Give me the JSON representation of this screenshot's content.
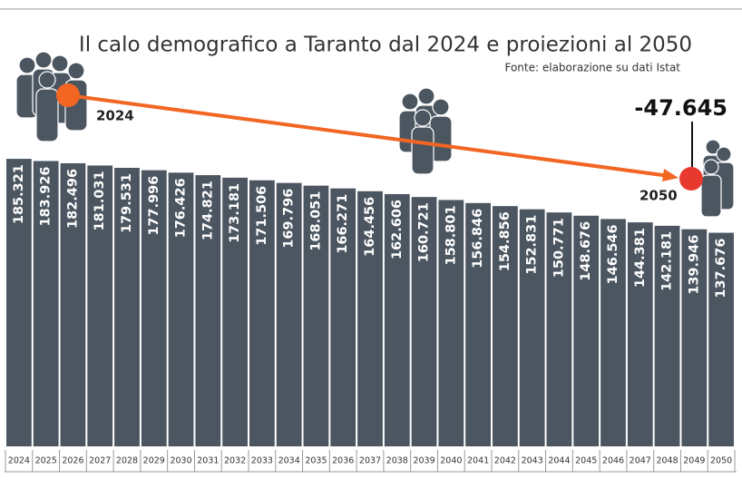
{
  "chart_data": {
    "type": "bar",
    "title": "Il calo demografico a Taranto dal 2024 e proiezioni al 2050",
    "subtitle": "Fonte: elaborazione su dati Istat",
    "categories": [
      "2024",
      "2025",
      "2026",
      "2027",
      "2028",
      "2029",
      "2030",
      "2031",
      "2032",
      "2033",
      "2034",
      "2035",
      "2036",
      "2037",
      "2038",
      "2039",
      "2040",
      "2041",
      "2042",
      "2043",
      "2044",
      "2045",
      "2046",
      "2047",
      "2048",
      "2049",
      "2050"
    ],
    "values": [
      185321,
      183926,
      182496,
      181031,
      179531,
      177996,
      176426,
      174821,
      173181,
      171506,
      169796,
      168051,
      166271,
      164456,
      162606,
      160721,
      158801,
      156846,
      154856,
      152831,
      150771,
      148676,
      146546,
      144381,
      142181,
      139946,
      137676
    ],
    "value_labels": [
      "185.321",
      "183.926",
      "182.496",
      "181.031",
      "179.531",
      "177.996",
      "176.426",
      "174.821",
      "173.181",
      "171.506",
      "169.796",
      "168.051",
      "166.271",
      "164.456",
      "162.606",
      "160.721",
      "158.801",
      "156.846",
      "154.856",
      "152.831",
      "150.771",
      "148.676",
      "146.546",
      "144.381",
      "142.181",
      "139.946",
      "137.676"
    ],
    "color": "#4b5661",
    "annotations": [
      "2024",
      "2050",
      "-47.645"
    ]
  }
}
